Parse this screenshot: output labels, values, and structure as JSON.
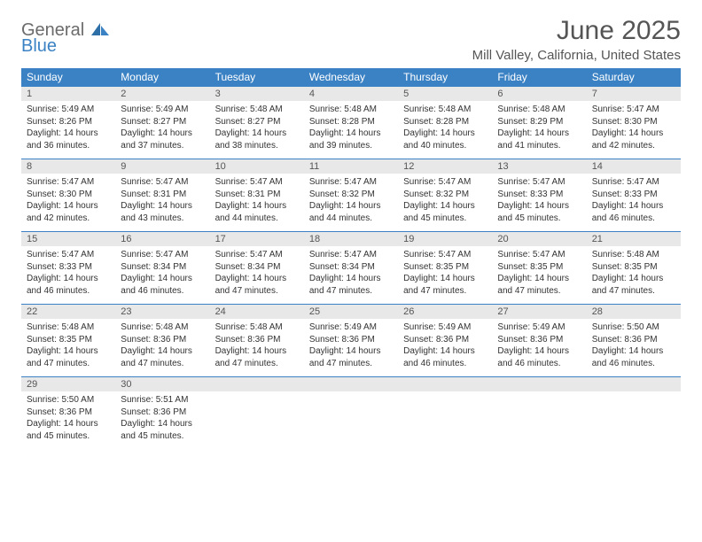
{
  "logo": {
    "general": "General",
    "blue": "Blue"
  },
  "title": "June 2025",
  "location": "Mill Valley, California, United States",
  "colors": {
    "header_bg": "#3b82c4",
    "daynum_bg": "#e8e8e8",
    "text": "#333333",
    "title_text": "#555555"
  },
  "weekdays": [
    "Sunday",
    "Monday",
    "Tuesday",
    "Wednesday",
    "Thursday",
    "Friday",
    "Saturday"
  ],
  "weeks": [
    [
      {
        "day": "1",
        "sunrise": "Sunrise: 5:49 AM",
        "sunset": "Sunset: 8:26 PM",
        "daylight": "Daylight: 14 hours and 36 minutes."
      },
      {
        "day": "2",
        "sunrise": "Sunrise: 5:49 AM",
        "sunset": "Sunset: 8:27 PM",
        "daylight": "Daylight: 14 hours and 37 minutes."
      },
      {
        "day": "3",
        "sunrise": "Sunrise: 5:48 AM",
        "sunset": "Sunset: 8:27 PM",
        "daylight": "Daylight: 14 hours and 38 minutes."
      },
      {
        "day": "4",
        "sunrise": "Sunrise: 5:48 AM",
        "sunset": "Sunset: 8:28 PM",
        "daylight": "Daylight: 14 hours and 39 minutes."
      },
      {
        "day": "5",
        "sunrise": "Sunrise: 5:48 AM",
        "sunset": "Sunset: 8:28 PM",
        "daylight": "Daylight: 14 hours and 40 minutes."
      },
      {
        "day": "6",
        "sunrise": "Sunrise: 5:48 AM",
        "sunset": "Sunset: 8:29 PM",
        "daylight": "Daylight: 14 hours and 41 minutes."
      },
      {
        "day": "7",
        "sunrise": "Sunrise: 5:47 AM",
        "sunset": "Sunset: 8:30 PM",
        "daylight": "Daylight: 14 hours and 42 minutes."
      }
    ],
    [
      {
        "day": "8",
        "sunrise": "Sunrise: 5:47 AM",
        "sunset": "Sunset: 8:30 PM",
        "daylight": "Daylight: 14 hours and 42 minutes."
      },
      {
        "day": "9",
        "sunrise": "Sunrise: 5:47 AM",
        "sunset": "Sunset: 8:31 PM",
        "daylight": "Daylight: 14 hours and 43 minutes."
      },
      {
        "day": "10",
        "sunrise": "Sunrise: 5:47 AM",
        "sunset": "Sunset: 8:31 PM",
        "daylight": "Daylight: 14 hours and 44 minutes."
      },
      {
        "day": "11",
        "sunrise": "Sunrise: 5:47 AM",
        "sunset": "Sunset: 8:32 PM",
        "daylight": "Daylight: 14 hours and 44 minutes."
      },
      {
        "day": "12",
        "sunrise": "Sunrise: 5:47 AM",
        "sunset": "Sunset: 8:32 PM",
        "daylight": "Daylight: 14 hours and 45 minutes."
      },
      {
        "day": "13",
        "sunrise": "Sunrise: 5:47 AM",
        "sunset": "Sunset: 8:33 PM",
        "daylight": "Daylight: 14 hours and 45 minutes."
      },
      {
        "day": "14",
        "sunrise": "Sunrise: 5:47 AM",
        "sunset": "Sunset: 8:33 PM",
        "daylight": "Daylight: 14 hours and 46 minutes."
      }
    ],
    [
      {
        "day": "15",
        "sunrise": "Sunrise: 5:47 AM",
        "sunset": "Sunset: 8:33 PM",
        "daylight": "Daylight: 14 hours and 46 minutes."
      },
      {
        "day": "16",
        "sunrise": "Sunrise: 5:47 AM",
        "sunset": "Sunset: 8:34 PM",
        "daylight": "Daylight: 14 hours and 46 minutes."
      },
      {
        "day": "17",
        "sunrise": "Sunrise: 5:47 AM",
        "sunset": "Sunset: 8:34 PM",
        "daylight": "Daylight: 14 hours and 47 minutes."
      },
      {
        "day": "18",
        "sunrise": "Sunrise: 5:47 AM",
        "sunset": "Sunset: 8:34 PM",
        "daylight": "Daylight: 14 hours and 47 minutes."
      },
      {
        "day": "19",
        "sunrise": "Sunrise: 5:47 AM",
        "sunset": "Sunset: 8:35 PM",
        "daylight": "Daylight: 14 hours and 47 minutes."
      },
      {
        "day": "20",
        "sunrise": "Sunrise: 5:47 AM",
        "sunset": "Sunset: 8:35 PM",
        "daylight": "Daylight: 14 hours and 47 minutes."
      },
      {
        "day": "21",
        "sunrise": "Sunrise: 5:48 AM",
        "sunset": "Sunset: 8:35 PM",
        "daylight": "Daylight: 14 hours and 47 minutes."
      }
    ],
    [
      {
        "day": "22",
        "sunrise": "Sunrise: 5:48 AM",
        "sunset": "Sunset: 8:35 PM",
        "daylight": "Daylight: 14 hours and 47 minutes."
      },
      {
        "day": "23",
        "sunrise": "Sunrise: 5:48 AM",
        "sunset": "Sunset: 8:36 PM",
        "daylight": "Daylight: 14 hours and 47 minutes."
      },
      {
        "day": "24",
        "sunrise": "Sunrise: 5:48 AM",
        "sunset": "Sunset: 8:36 PM",
        "daylight": "Daylight: 14 hours and 47 minutes."
      },
      {
        "day": "25",
        "sunrise": "Sunrise: 5:49 AM",
        "sunset": "Sunset: 8:36 PM",
        "daylight": "Daylight: 14 hours and 47 minutes."
      },
      {
        "day": "26",
        "sunrise": "Sunrise: 5:49 AM",
        "sunset": "Sunset: 8:36 PM",
        "daylight": "Daylight: 14 hours and 46 minutes."
      },
      {
        "day": "27",
        "sunrise": "Sunrise: 5:49 AM",
        "sunset": "Sunset: 8:36 PM",
        "daylight": "Daylight: 14 hours and 46 minutes."
      },
      {
        "day": "28",
        "sunrise": "Sunrise: 5:50 AM",
        "sunset": "Sunset: 8:36 PM",
        "daylight": "Daylight: 14 hours and 46 minutes."
      }
    ],
    [
      {
        "day": "29",
        "sunrise": "Sunrise: 5:50 AM",
        "sunset": "Sunset: 8:36 PM",
        "daylight": "Daylight: 14 hours and 45 minutes."
      },
      {
        "day": "30",
        "sunrise": "Sunrise: 5:51 AM",
        "sunset": "Sunset: 8:36 PM",
        "daylight": "Daylight: 14 hours and 45 minutes."
      },
      null,
      null,
      null,
      null,
      null
    ]
  ]
}
